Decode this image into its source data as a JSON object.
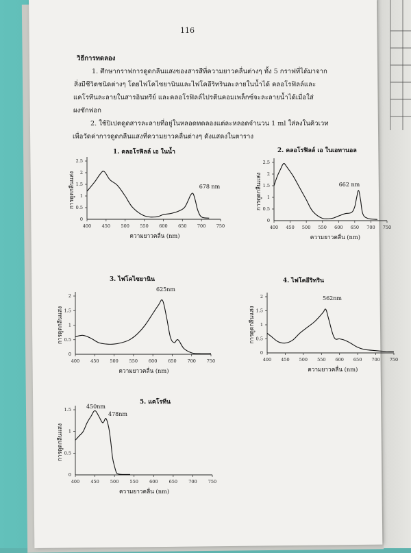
{
  "page": {
    "number": "116",
    "heading": "วิธีการทดลอง",
    "para1_l1": "1. ศึกษากราฟการดูดกลืนแสงของสารสีที่ความยาวคลื่นต่างๆ ทั้ง 5 กราฟที่ได้มาจาก",
    "para1_l2": "สิ่งมีชีวิตชนิดต่างๆ โดยไฟโคไซยานินและไฟโคอีริทรินละลายในน้ำได้ คลอโรฟิลล์และ",
    "para1_l3": "แคโรทีนละลายในสารอินทรีย์ และคลอโรฟิลล์ไปรตีนคอมเพล็กซ์จะละลายน้ำได้เมื่อใส่",
    "para1_l4": "ผงซักฟอก",
    "para2_l1": "2. ใช้ปิเปตดูดสารละลายที่อยู่ในหลอดทดลองแต่ละหลอดจำนวน 1 ml ใส่ลงในคิวเวท",
    "para2_l2": "เพื่อวัดค่าการดูดกลืนแสงที่ความยาวคลื่นต่างๆ ดังแสดงในตาราง"
  },
  "chart_data": [
    {
      "type": "line",
      "title": "1. คลอโรฟิลล์ เอ ในน้ำ",
      "xlabel": "ความยาวคลื่น (nm)",
      "ylabel": "การดูดกลืนแสง",
      "annotation": "678 nm",
      "xlim": [
        400,
        750
      ],
      "ylim": [
        0,
        2.5
      ],
      "x_ticks": [
        "400",
        "450",
        "500",
        "550",
        "600",
        "650",
        "700",
        "750"
      ],
      "y_ticks": [
        "0.5",
        "1",
        "1.5",
        "2",
        "2.5"
      ],
      "x": [
        400,
        420,
        435,
        445,
        460,
        480,
        500,
        520,
        550,
        580,
        600,
        620,
        640,
        655,
        665,
        672,
        678,
        684,
        690,
        700,
        720
      ],
      "y": [
        1.2,
        1.6,
        1.95,
        2.05,
        1.7,
        1.45,
        1.0,
        0.5,
        0.15,
        0.1,
        0.2,
        0.25,
        0.35,
        0.5,
        0.8,
        1.05,
        1.1,
        0.8,
        0.4,
        0.1,
        0.05
      ]
    },
    {
      "type": "line",
      "title": "2. คลอโรฟิลล์ เอ ในเอทานอล",
      "xlabel": "ความยาวคลื่น (nm)",
      "ylabel": "การดูดกลืนแสง",
      "annotation": "662 nm",
      "xlim": [
        400,
        750
      ],
      "ylim": [
        0,
        2.5
      ],
      "x_ticks": [
        "400",
        "450",
        "500",
        "550",
        "600",
        "650",
        "700",
        "750"
      ],
      "y_ticks": [
        "0.5",
        "1",
        "1.5",
        "2",
        "2.5"
      ],
      "x": [
        400,
        410,
        420,
        430,
        440,
        460,
        480,
        500,
        520,
        550,
        580,
        600,
        620,
        640,
        650,
        656,
        662,
        668,
        675,
        690,
        720
      ],
      "y": [
        1.5,
        1.9,
        2.2,
        2.45,
        2.3,
        1.9,
        1.4,
        0.9,
        0.4,
        0.1,
        0.1,
        0.2,
        0.3,
        0.35,
        0.6,
        1.0,
        1.3,
        0.9,
        0.3,
        0.1,
        0.05
      ]
    },
    {
      "type": "line",
      "title": "3. ไฟโคไซยานิน",
      "xlabel": "ความยาวคลื่น (nm)",
      "ylabel": "การดูดกลืนแสง",
      "annotation": "625nm",
      "xlim": [
        400,
        750
      ],
      "ylim": [
        0,
        2
      ],
      "x_ticks": [
        "400",
        "450",
        "500",
        "550",
        "600",
        "650",
        "700",
        "750"
      ],
      "y_ticks": [
        "0.5",
        "1",
        "1.5",
        "2"
      ],
      "x": [
        400,
        420,
        440,
        460,
        480,
        500,
        520,
        540,
        560,
        580,
        600,
        615,
        625,
        635,
        645,
        655,
        665,
        680,
        700,
        720,
        750
      ],
      "y": [
        0.6,
        0.65,
        0.55,
        0.4,
        0.35,
        0.35,
        0.4,
        0.5,
        0.7,
        1.0,
        1.4,
        1.7,
        1.85,
        1.3,
        0.6,
        0.4,
        0.5,
        0.2,
        0.05,
        0.02,
        0.02
      ]
    },
    {
      "type": "line",
      "title": "4. ไฟโคอีริทริน",
      "xlabel": "ความยาวคลื่น (nm)",
      "ylabel": "การดูดกลืนแสง",
      "annotation": "562nm",
      "xlim": [
        400,
        750
      ],
      "ylim": [
        0,
        2
      ],
      "x_ticks": [
        "400",
        "450",
        "500",
        "550",
        "600",
        "650",
        "700",
        "750"
      ],
      "y_ticks": [
        "0.5",
        "1",
        "1.5",
        "2"
      ],
      "x": [
        400,
        410,
        430,
        450,
        470,
        490,
        510,
        530,
        545,
        555,
        562,
        570,
        585,
        600,
        615,
        630,
        650,
        670,
        700,
        730,
        750
      ],
      "y": [
        0.7,
        0.6,
        0.4,
        0.35,
        0.45,
        0.7,
        0.9,
        1.1,
        1.3,
        1.45,
        1.55,
        1.2,
        0.55,
        0.5,
        0.45,
        0.35,
        0.2,
        0.12,
        0.08,
        0.05,
        0.05
      ]
    },
    {
      "type": "line",
      "title": "5. แคโรทีน",
      "xlabel": "ความยาวคลื่น (nm)",
      "ylabel": "การดูดกลืนแสง",
      "annotations": [
        "450nm",
        "478nm"
      ],
      "xlim": [
        400,
        750
      ],
      "ylim": [
        0,
        1.5
      ],
      "x_ticks": [
        "400",
        "450",
        "500",
        "550",
        "600",
        "650",
        "700",
        "750"
      ],
      "y_ticks": [
        "0.5",
        "1",
        "1.5"
      ],
      "x": [
        400,
        410,
        420,
        430,
        440,
        450,
        460,
        470,
        478,
        485,
        490,
        495,
        500,
        505,
        510,
        520,
        540
      ],
      "y": [
        0.8,
        0.9,
        1.0,
        1.2,
        1.35,
        1.48,
        1.35,
        1.2,
        1.3,
        1.1,
        0.8,
        0.4,
        0.2,
        0.05,
        0.02,
        0.01,
        0.01
      ]
    }
  ]
}
